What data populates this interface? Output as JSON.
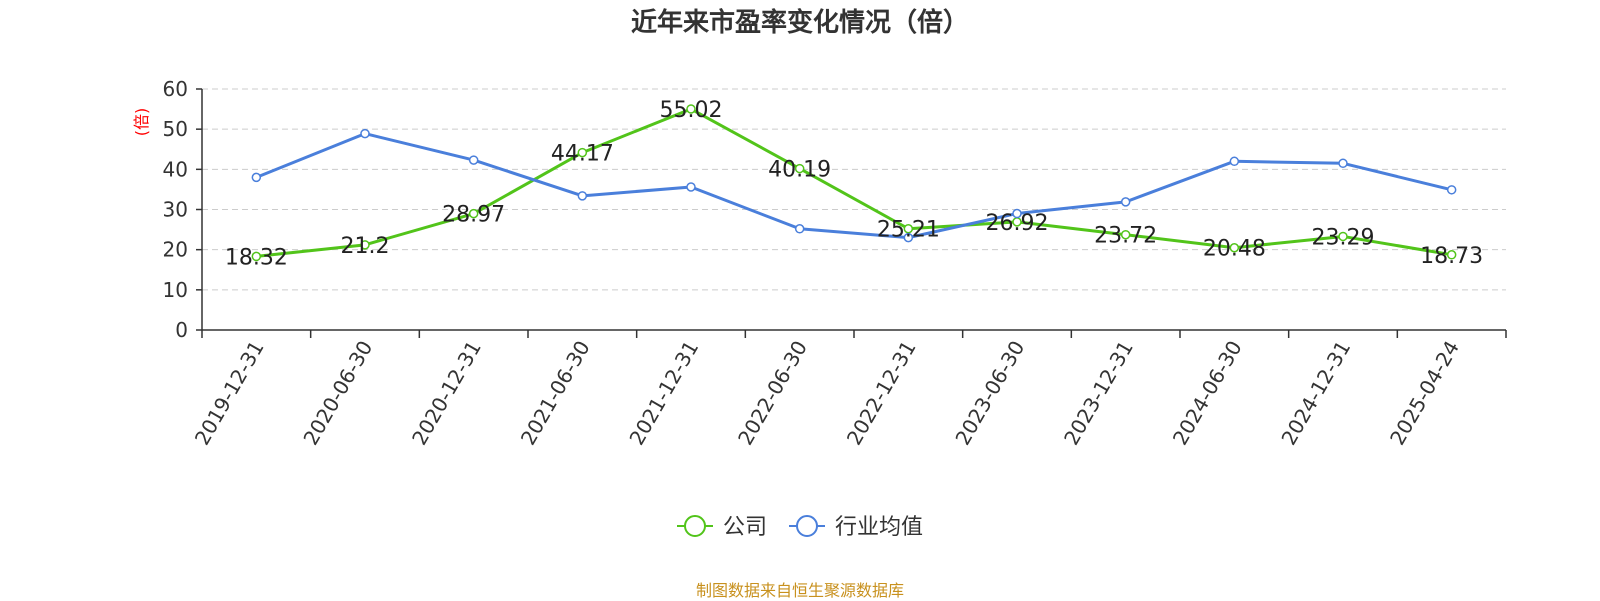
{
  "chart_data": {
    "type": "line",
    "title": "近年来市盈率变化情况（倍）",
    "ylabel": "(倍)",
    "xlabel": "",
    "categories": [
      "2019-12-31",
      "2020-06-30",
      "2020-12-31",
      "2021-06-30",
      "2021-12-31",
      "2022-06-30",
      "2022-12-31",
      "2023-06-30",
      "2023-12-31",
      "2024-06-30",
      "2024-12-31",
      "2025-04-24"
    ],
    "ylim": [
      0,
      60
    ],
    "yticks": [
      0,
      10,
      20,
      30,
      40,
      50,
      60
    ],
    "grid": true,
    "legend_position": "bottom-center",
    "series": [
      {
        "name": "公司",
        "color": "#52c41a",
        "values": [
          18.32,
          21.2,
          28.97,
          44.17,
          55.02,
          40.19,
          25.21,
          26.92,
          23.72,
          20.48,
          23.29,
          18.73
        ],
        "data_labels": [
          "18.32",
          "21.2",
          "28.97",
          "44.17",
          "55.02",
          "40.19",
          "25.21",
          "26.92",
          "23.72",
          "20.48",
          "23.29",
          "18.73"
        ]
      },
      {
        "name": "行业均值",
        "color": "#4a7fdb",
        "values": [
          38.0,
          48.9,
          42.3,
          33.4,
          35.6,
          25.2,
          23.0,
          29.0,
          31.9,
          42.0,
          41.5,
          34.9
        ]
      }
    ]
  },
  "ylabel_color": "#ff0000",
  "source": {
    "text": "制图数据来自恒生聚源数据库",
    "color": "#c8911e"
  }
}
